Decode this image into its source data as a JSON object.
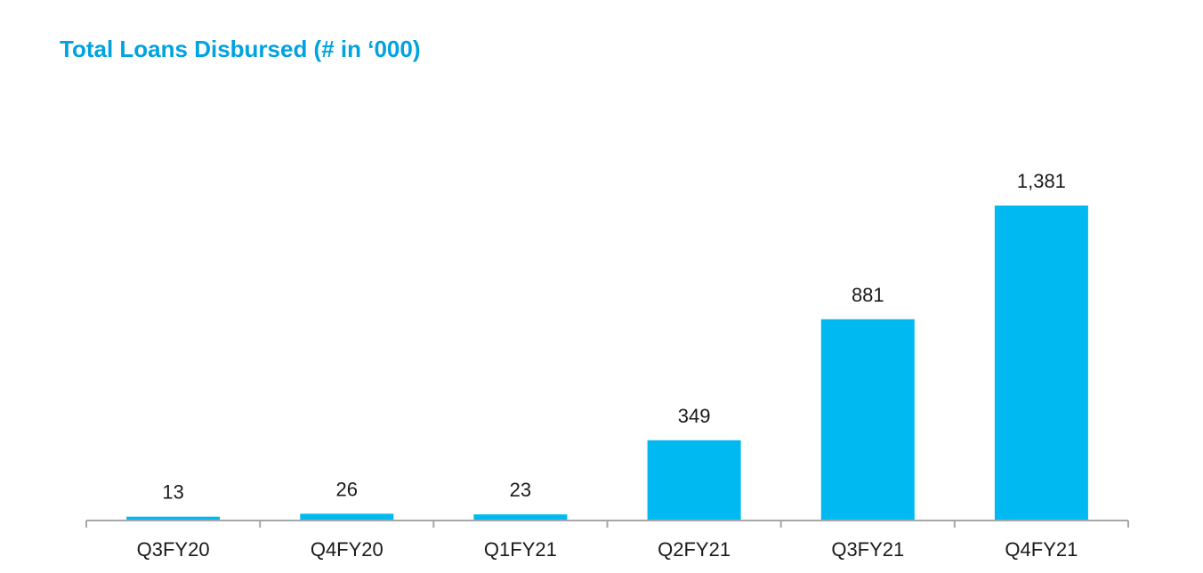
{
  "chart_data": {
    "type": "bar",
    "title": "Total Loans Disbursed (# in ‘000)",
    "categories": [
      "Q3FY20",
      "Q4FY20",
      "Q1FY21",
      "Q2FY21",
      "Q3FY21",
      "Q4FY21"
    ],
    "values": [
      13,
      26,
      23,
      349,
      881,
      1381
    ],
    "data_labels": [
      "13",
      "26",
      "23",
      "349",
      "881",
      "1,381"
    ],
    "xlabel": "",
    "ylabel": "",
    "ylim": [
      0,
      1381
    ],
    "grid": false,
    "legend": "none",
    "bar_color": "#00b9f1",
    "axis_color": "#a6a6a6",
    "title_color": "#00a3e0"
  }
}
